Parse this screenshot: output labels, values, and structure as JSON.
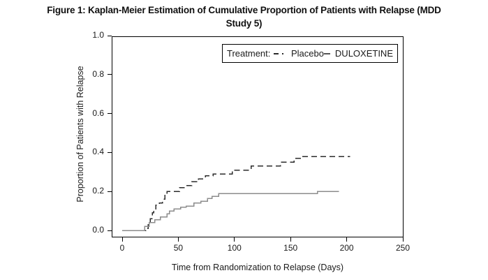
{
  "figure": {
    "title_line1": "Figure 1: Kaplan-Meier Estimation of Cumulative Proportion of Patients with Relapse (MDD",
    "title_line2": "Study 5)"
  },
  "chart_data": {
    "type": "line",
    "subtype": "kaplan_meier_step",
    "title": "Figure 1: Kaplan-Meier Estimation of Cumulative Proportion of Patients with Relapse (MDD Study 5)",
    "xlabel": "Time from Randomization to Relapse (Days)",
    "ylabel": "Proportion of Patients with Relapse",
    "xlim": [
      0,
      250
    ],
    "ylim": [
      0.0,
      1.0
    ],
    "x_ticks": [
      0,
      50,
      100,
      150,
      200,
      250
    ],
    "y_tick_labels": [
      "0.0",
      "0.2",
      "0.4",
      "0.6",
      "0.8",
      "1.0"
    ],
    "grid": false,
    "background_color": "#ffffff",
    "axis_color": "#000000",
    "legend": {
      "label": "Treatment:",
      "position": "top-center-inside",
      "entries": [
        {
          "name": "Placebo",
          "line_style": "dashed",
          "color": "#2b2b2b"
        },
        {
          "name": "DULOXETINE",
          "line_style": "solid",
          "color": "#8c8c8c"
        }
      ]
    },
    "series": [
      {
        "name": "Placebo",
        "line_style": "dashed",
        "color": "#2b2b2b",
        "points": [
          [
            0,
            0
          ],
          [
            20,
            0
          ],
          [
            21,
            0.01
          ],
          [
            23,
            0.03
          ],
          [
            25,
            0.06
          ],
          [
            27,
            0.09
          ],
          [
            28,
            0.11
          ],
          [
            30,
            0.13
          ],
          [
            33,
            0.14
          ],
          [
            36,
            0.16
          ],
          [
            38,
            0.18
          ],
          [
            40,
            0.2
          ],
          [
            51,
            0.22
          ],
          [
            57,
            0.23
          ],
          [
            62,
            0.25
          ],
          [
            68,
            0.265
          ],
          [
            74,
            0.28
          ],
          [
            81,
            0.29
          ],
          [
            98,
            0.31
          ],
          [
            115,
            0.33
          ],
          [
            141,
            0.35
          ],
          [
            153,
            0.37
          ],
          [
            160,
            0.38
          ],
          [
            203,
            0.38
          ]
        ]
      },
      {
        "name": "DULOXETINE",
        "line_style": "solid",
        "color": "#8c8c8c",
        "points": [
          [
            0,
            0
          ],
          [
            18,
            0
          ],
          [
            20,
            0.02
          ],
          [
            24,
            0.04
          ],
          [
            29,
            0.055
          ],
          [
            34,
            0.07
          ],
          [
            40,
            0.085
          ],
          [
            42,
            0.1
          ],
          [
            46,
            0.11
          ],
          [
            52,
            0.12
          ],
          [
            57,
            0.125
          ],
          [
            64,
            0.14
          ],
          [
            70,
            0.15
          ],
          [
            76,
            0.165
          ],
          [
            80,
            0.175
          ],
          [
            86,
            0.19
          ],
          [
            173,
            0.19
          ],
          [
            174,
            0.2
          ],
          [
            193,
            0.2
          ]
        ]
      }
    ]
  }
}
